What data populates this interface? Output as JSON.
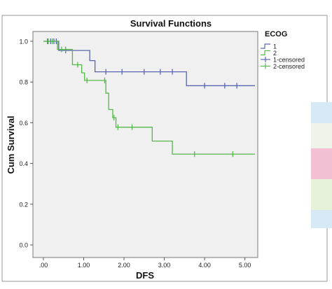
{
  "chart_data": {
    "type": "line",
    "chart_kind": "kaplan-meier step",
    "title": "Survival Functions",
    "xlabel": "DFS",
    "ylabel": "Cum Survival",
    "xlim": [
      0,
      5.25
    ],
    "ylim": [
      0,
      1.0
    ],
    "x_ticks": [
      0,
      1,
      2,
      3,
      4,
      5
    ],
    "x_tick_labels": [
      ".00",
      "1.00",
      "2.00",
      "3.00",
      "4.00",
      "5.00"
    ],
    "y_ticks": [
      0,
      0.2,
      0.4,
      0.6,
      0.8,
      1.0
    ],
    "y_tick_labels": [
      "0.0",
      "0.2",
      "0.4",
      "0.6",
      "0.8",
      "1.0"
    ],
    "grid": false,
    "legend_title": "ECOG",
    "legend_position": "right",
    "legend_entries": [
      {
        "label": "1",
        "color": "#5a66b0",
        "kind": "line"
      },
      {
        "label": "2",
        "color": "#55b84a",
        "kind": "line"
      },
      {
        "label": "1-censored",
        "color": "#5a66b0",
        "kind": "censor"
      },
      {
        "label": "2-censored",
        "color": "#55b84a",
        "kind": "censor"
      }
    ],
    "series": [
      {
        "color": "#5a66b0",
        "steps": [
          [
            0,
            1.0
          ],
          [
            0.38,
            0.955
          ],
          [
            1.15,
            0.905
          ],
          [
            1.28,
            0.85
          ],
          [
            3.55,
            0.782
          ],
          [
            5.25,
            0.782
          ]
        ],
        "censored": [
          [
            0.1,
            1.0
          ],
          [
            0.18,
            1.0
          ],
          [
            0.26,
            1.0
          ],
          [
            0.32,
            1.0
          ],
          [
            0.55,
            0.955
          ],
          [
            1.55,
            0.85
          ],
          [
            1.95,
            0.85
          ],
          [
            2.5,
            0.85
          ],
          [
            2.9,
            0.85
          ],
          [
            3.2,
            0.85
          ],
          [
            4.0,
            0.782
          ],
          [
            4.5,
            0.782
          ],
          [
            4.8,
            0.782
          ]
        ]
      },
      {
        "color": "#55b84a",
        "steps": [
          [
            0,
            1.0
          ],
          [
            0.35,
            0.96
          ],
          [
            0.72,
            0.885
          ],
          [
            0.95,
            0.845
          ],
          [
            1.02,
            0.808
          ],
          [
            1.55,
            0.745
          ],
          [
            1.62,
            0.665
          ],
          [
            1.72,
            0.625
          ],
          [
            1.8,
            0.578
          ],
          [
            2.7,
            0.51
          ],
          [
            3.2,
            0.446
          ],
          [
            5.25,
            0.446
          ]
        ],
        "censored": [
          [
            0.12,
            1.0
          ],
          [
            0.22,
            1.0
          ],
          [
            0.45,
            0.96
          ],
          [
            0.55,
            0.96
          ],
          [
            0.85,
            0.885
          ],
          [
            1.08,
            0.808
          ],
          [
            1.52,
            0.808
          ],
          [
            1.75,
            0.625
          ],
          [
            1.85,
            0.578
          ],
          [
            2.2,
            0.578
          ],
          [
            3.75,
            0.446
          ],
          [
            4.7,
            0.446
          ]
        ]
      }
    ]
  },
  "decor": {
    "side_colors": [
      "#d6e9f4",
      "#eef4ea",
      "#f3bfd4",
      "#e6f2da",
      "#d6e9f4"
    ]
  }
}
